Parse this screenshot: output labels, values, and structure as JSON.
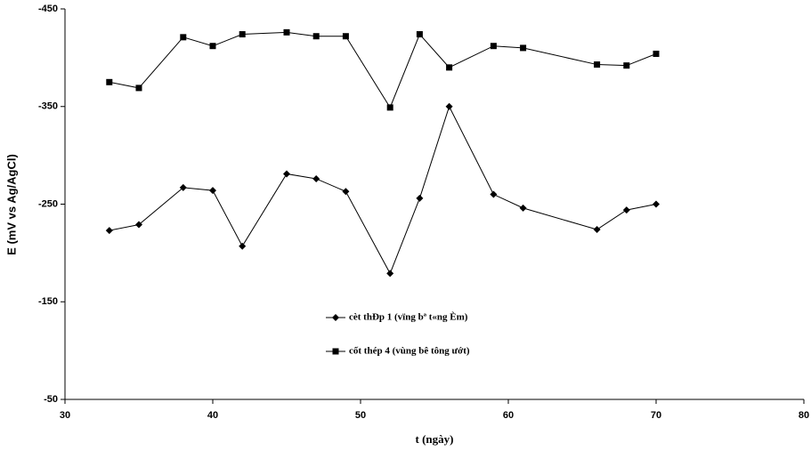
{
  "chart_data": {
    "type": "line",
    "x_label": "t (ngày)",
    "y_label": "E (mV vs Ag/AgCl)",
    "x": [
      33,
      35,
      38,
      40,
      42,
      45,
      47,
      49,
      52,
      54,
      56,
      59,
      61,
      66,
      68,
      70
    ],
    "series": [
      {
        "name": "cèt thÐp 1 (vïng bª t«ng Èm)",
        "color": "#000000",
        "marker": "diamond",
        "values": [
          -223,
          -229,
          -267,
          -264,
          -207,
          -281,
          -276,
          -263,
          -179,
          -256,
          -350,
          -260,
          -246,
          -224,
          -244,
          -250
        ]
      },
      {
        "name": "cốt thép 4 (vùng bê tông ướt)",
        "color": "#000000",
        "marker": "square",
        "values": [
          -375,
          -369,
          -421,
          -412,
          -424,
          -426,
          -422,
          -422,
          -349,
          -424,
          -390,
          -412,
          -410,
          -393,
          -392,
          -404
        ]
      }
    ],
    "xlim": [
      30,
      80
    ],
    "xticks": [
      30,
      40,
      50,
      60,
      70,
      80
    ],
    "ylim": [
      -50,
      -450
    ],
    "yticks": [
      -450,
      -350,
      -250,
      -150,
      -50
    ],
    "grid": false,
    "legend": "center"
  }
}
